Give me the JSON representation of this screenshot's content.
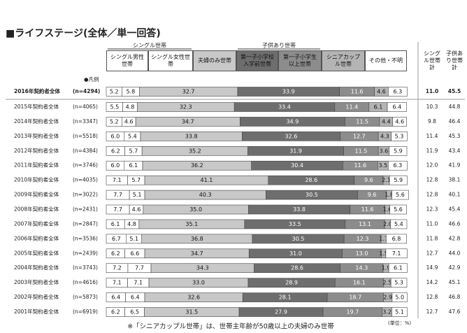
{
  "chart_data": {
    "type": "bar",
    "orientation": "horizontal",
    "stacked": true,
    "title": "■ライフステージ(全体／単一回答)",
    "legend_label": "●凡例",
    "groups": [
      {
        "label": "シングル世帯"
      },
      {
        "label": "子供あり世帯"
      }
    ],
    "xlim": [
      0,
      100
    ],
    "categories": [
      "2016年契約者全体",
      "2015年契約者全体",
      "2014年契約者全体",
      "2013年契約者全体",
      "2012年契約者全体",
      "2011年契約者全体",
      "2010年契約者全体",
      "2009年契約者全体",
      "2008年契約者全体",
      "2007年契約者全体",
      "2006年契約者全体",
      "2005年契約者全体",
      "2004年契約者全体",
      "2003年契約者全体",
      "2002年契約者全体",
      "2001年契約者全体"
    ],
    "sample_sizes": [
      "(n=4294)",
      "(n=4065)",
      "(n=3347)",
      "(n=5518)",
      "(n=4384)",
      "(n=3746)",
      "(n=4035)",
      "(n=3022)",
      "(n=2431)",
      "(n=2847)",
      "(n=3536)",
      "(n=2439)",
      "(n=3743)",
      "(n=4616)",
      "(n=5873)",
      "(n=6919)"
    ],
    "series": [
      {
        "name": "シングル男性世帯",
        "color": "#ffffff",
        "values": [
          5.2,
          5.5,
          5.2,
          6.0,
          6.2,
          6.0,
          7.1,
          7.7,
          7.7,
          6.1,
          6.7,
          6.2,
          7.2,
          7.1,
          6.4,
          6.2
        ],
        "value_labels": [
          "5.2",
          "5.5",
          "5.2",
          "6.0",
          "6.2",
          "6.0",
          "7.1",
          "7.7",
          "7.7",
          "6.1",
          "6.7",
          "6.2",
          "7.2",
          "7.1",
          "6.4",
          "6.2"
        ]
      },
      {
        "name": "シングル女性世帯",
        "color": "#ffffff",
        "values": [
          5.8,
          4.8,
          4.6,
          5.4,
          5.7,
          6.1,
          5.7,
          5.1,
          4.6,
          4.8,
          5.1,
          6.6,
          7.7,
          7.1,
          6.4,
          6.5
        ],
        "value_labels": [
          "5.8",
          "4.8",
          "4.6",
          "5.4",
          "5.7",
          "6.1",
          "5.7",
          "5.1",
          "4.6",
          "4.8",
          "5.1",
          "6.6",
          "7.7",
          "7.1",
          "6.4",
          "6.5"
        ]
      },
      {
        "name": "夫婦のみ世帯",
        "color": "#c8c8c8",
        "values": [
          32.7,
          32.3,
          34.7,
          33.8,
          35.2,
          36.2,
          41.1,
          40.3,
          35.0,
          35.1,
          36.8,
          34.7,
          34.3,
          33.0,
          32.6,
          31.5
        ],
        "value_labels": [
          "32.7",
          "32.3",
          "34.7",
          "33.8",
          "35.2",
          "36.2",
          "41.1",
          "40.3",
          "35.0",
          "35.1",
          "36.8",
          "34.7",
          "34.3",
          "33.0",
          "32.6",
          "31.5"
        ]
      },
      {
        "name": "第一子小学校入学前世帯",
        "color": "#6e6e6e",
        "values": [
          33.9,
          33.4,
          34.9,
          32.6,
          31.9,
          30.4,
          28.6,
          30.5,
          33.8,
          33.5,
          30.5,
          31.0,
          28.6,
          28.9,
          28.1,
          27.9
        ],
        "value_labels": [
          "33.9",
          "33.4",
          "34.9",
          "32.6",
          "31.9",
          "30.4",
          "28.6",
          "30.5",
          "33.8",
          "33.5",
          "30.5",
          "31.0",
          "28.6",
          "28.9",
          "28.1",
          "27.9"
        ]
      },
      {
        "name": "第一子小学生以上世帯",
        "color": "#8c8c8c",
        "values": [
          11.6,
          11.4,
          11.5,
          12.7,
          11.5,
          11.6,
          9.6,
          9.6,
          11.6,
          13.1,
          12.3,
          13.0,
          14.3,
          16.1,
          18.7,
          19.7
        ],
        "value_labels": [
          "11.6",
          "11.4",
          "11.5",
          "12.7",
          "11.5",
          "11.6",
          "9.6",
          "9.6",
          "11.6",
          "13.1",
          "12.3",
          "13.0",
          "14.3",
          "16.1",
          "18.7",
          "19.7"
        ]
      },
      {
        "name": "シニアカップル世帯",
        "color": "#b4b4b4",
        "values": [
          4.6,
          6.1,
          4.4,
          4.3,
          3.6,
          3.5,
          2.1,
          1.8,
          1.6,
          2.0,
          1.7,
          1.5,
          1.9,
          2.5,
          2.9,
          3.2
        ],
        "value_labels": [
          "4.6",
          "6.1",
          "4.4",
          "4.3",
          "3.6",
          "3.5",
          "2.1",
          "1.8",
          "1.6",
          "2.0",
          "1.7",
          "1.5",
          "1.9",
          "2.5",
          "2.9",
          "3.2"
        ]
      },
      {
        "name": "その他・不明",
        "color": "#ffffff",
        "values": [
          6.3,
          6.4,
          4.6,
          5.3,
          5.9,
          6.3,
          5.9,
          5.6,
          5.6,
          5.4,
          6.8,
          7.1,
          6.1,
          5.3,
          5.0,
          5.1
        ],
        "value_labels": [
          "6.3",
          "6.4",
          "4.6",
          "5.3",
          "5.9",
          "6.3",
          "5.9",
          "5.6",
          "5.6",
          "5.4",
          "6.8",
          "7.1",
          "6.1",
          "5.3",
          "5.0",
          "5.1"
        ]
      }
    ],
    "totals": [
      {
        "name": "シングル世帯計",
        "values": [
          11.0,
          10.3,
          9.8,
          11.4,
          11.9,
          12.0,
          12.8,
          12.8,
          12.3,
          11.0,
          11.8,
          12.7,
          14.9,
          14.2,
          12.8,
          12.7
        ],
        "value_labels": [
          "11.0",
          "10.3",
          "9.8",
          "11.4",
          "11.9",
          "12.0",
          "12.8",
          "12.8",
          "12.3",
          "11.0",
          "11.8",
          "12.7",
          "14.9",
          "14.2",
          "12.8",
          "12.7"
        ]
      },
      {
        "name": "子供あり世帯計",
        "values": [
          45.5,
          44.8,
          46.4,
          45.3,
          43.4,
          41.9,
          38.1,
          40.1,
          45.4,
          46.6,
          42.8,
          44.0,
          42.9,
          45.1,
          46.8,
          47.6
        ],
        "value_labels": [
          "45.5",
          "44.8",
          "46.4",
          "45.3",
          "43.4",
          "41.9",
          "38.1",
          "40.1",
          "45.4",
          "46.6",
          "42.8",
          "44.0",
          "42.9",
          "45.1",
          "46.8",
          "47.6"
        ]
      }
    ],
    "footnote": "※「シニアカップル世帯」は、世帯主年齢が50歳以上の夫婦のみ世帯",
    "unit_note": "(単位：%)"
  }
}
